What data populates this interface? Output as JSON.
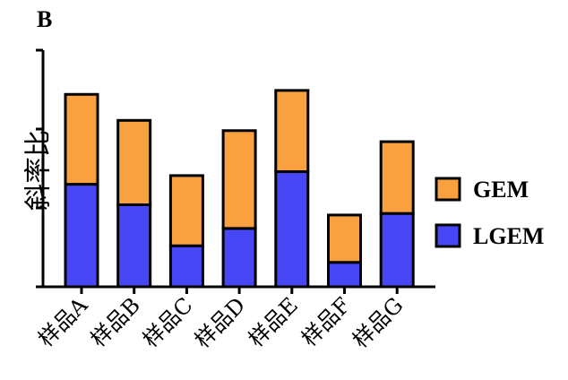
{
  "panel_label": "B",
  "colors": {
    "gem": "#f9a040",
    "lgem": "#4747f5",
    "outline": "#000000"
  },
  "chart_data": {
    "type": "bar",
    "stacked": true,
    "title": "",
    "xlabel": "",
    "ylabel": "斜率比",
    "ylim": [
      0,
      3
    ],
    "y_ticks": [
      0,
      1,
      2,
      3
    ],
    "y_tick_labels_shown": false,
    "grid": false,
    "legend_position": "right",
    "categories": [
      "样品A",
      "样品B",
      "样品C",
      "样品D",
      "样品E",
      "样品F",
      "样品G"
    ],
    "series": [
      {
        "name": "LGEM",
        "values": [
          1.3,
          1.04,
          0.52,
          0.74,
          1.46,
          0.31,
          0.93
        ]
      },
      {
        "name": "GEM",
        "values": [
          1.14,
          1.07,
          0.89,
          1.24,
          1.03,
          0.6,
          0.91
        ]
      }
    ]
  }
}
